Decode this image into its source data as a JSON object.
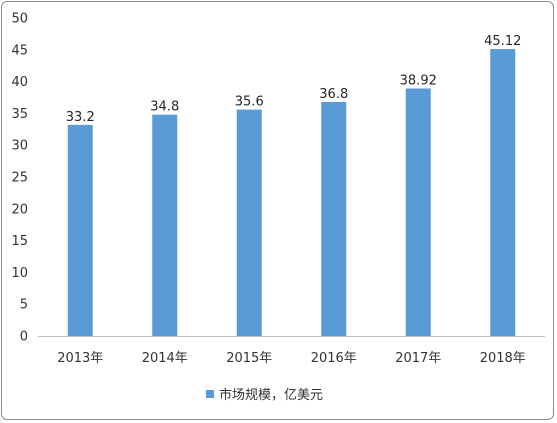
{
  "chart_data": {
    "type": "bar",
    "categories": [
      "2013年",
      "2014年",
      "2015年",
      "2016年",
      "2017年",
      "2018年"
    ],
    "series": [
      {
        "name": "市场规模，亿美元",
        "values": [
          33.2,
          34.8,
          35.6,
          36.8,
          38.92,
          45.12
        ],
        "labels": [
          "33.2",
          "34.8",
          "35.6",
          "36.8",
          "38.92",
          "45.12"
        ]
      }
    ],
    "yticks": [
      "0",
      "5",
      "10",
      "15",
      "20",
      "25",
      "30",
      "35",
      "40",
      "45",
      "50"
    ],
    "ylim": [
      0,
      50
    ],
    "grid": false,
    "legend_position": "bottom",
    "colors": {
      "bar": "#5b9bd5",
      "axis": "#bfbfbf",
      "border": "#8c8c8c"
    }
  }
}
